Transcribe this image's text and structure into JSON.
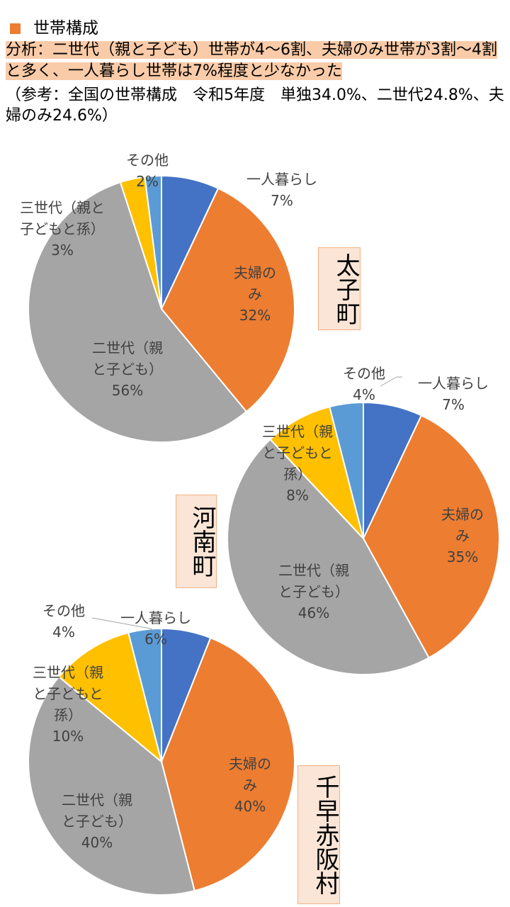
{
  "header": {
    "title": "世帯構成",
    "analysis": "分析：二世代（親と子ども）世帯が4～6割、夫婦のみ世帯が3割～4割と多く、一人暮らし世帯は7%程度と少なかった",
    "note": "（参考：全国の世帯構成　令和5年度　単独34.0%、二世代24.8%、夫婦のみ24.6%）"
  },
  "colors": {
    "bullet": "#ed7d31",
    "single": "#4472c4",
    "couple": "#ed7d31",
    "two_gen": "#a5a5a5",
    "three_gen": "#ffc000",
    "other": "#5b9bd5"
  },
  "chart_data": [
    {
      "type": "pie",
      "title": "太子町",
      "categories": [
        "一人暮らし",
        "夫婦のみ",
        "二世代（親と子ども）",
        "三世代（親と子どもと孫）",
        "その他"
      ],
      "values": [
        7,
        32,
        56,
        3,
        2
      ],
      "labels": [
        [
          "一人暮らし",
          "7%"
        ],
        [
          "夫婦の",
          "み",
          "32%"
        ],
        [
          "二世代（親",
          "と子ども）",
          "56%"
        ],
        [
          "三世代（親と",
          "子どもと孫）",
          "3%"
        ],
        [
          "その他",
          "2%"
        ]
      ]
    },
    {
      "type": "pie",
      "title": "河南町",
      "categories": [
        "一人暮らし",
        "夫婦のみ",
        "二世代（親と子ども）",
        "三世代（親と子どもと孫）",
        "その他"
      ],
      "values": [
        7,
        35,
        46,
        8,
        4
      ],
      "labels": [
        [
          "一人暮らし",
          "7%"
        ],
        [
          "夫婦の",
          "み",
          "35%"
        ],
        [
          "二世代（親",
          "と子ども）",
          "46%"
        ],
        [
          "三世代（親",
          "と子どもと",
          "孫）",
          "8%"
        ],
        [
          "その他",
          "4%"
        ]
      ]
    },
    {
      "type": "pie",
      "title": "千早赤阪村",
      "categories": [
        "一人暮らし",
        "夫婦のみ",
        "二世代（親と子ども）",
        "三世代（親と子どもと孫）",
        "その他"
      ],
      "values": [
        6,
        40,
        40,
        10,
        4
      ],
      "labels": [
        [
          "一人暮らし",
          "6%"
        ],
        [
          "夫婦の",
          "み",
          "40%"
        ],
        [
          "二世代（親",
          "と子ども）",
          "40%"
        ],
        [
          "三世代（親",
          "と子どもと",
          "孫）",
          "10%"
        ],
        [
          "その他",
          "4%"
        ]
      ]
    }
  ]
}
